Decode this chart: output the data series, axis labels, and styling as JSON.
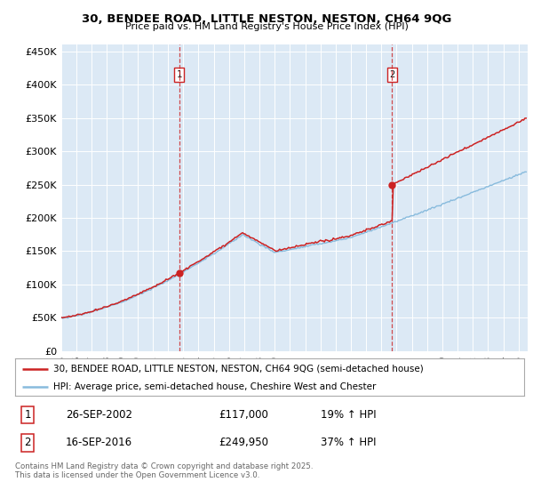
{
  "title": "30, BENDEE ROAD, LITTLE NESTON, NESTON, CH64 9QG",
  "subtitle": "Price paid vs. HM Land Registry's House Price Index (HPI)",
  "ylim": [
    0,
    460000
  ],
  "yticks": [
    0,
    50000,
    100000,
    150000,
    200000,
    250000,
    300000,
    350000,
    400000,
    450000
  ],
  "background_color": "#dce9f5",
  "sale1_price": 117000,
  "sale1_year": 2002.73,
  "sale2_price": 249950,
  "sale2_year": 2016.71,
  "legend_line1": "30, BENDEE ROAD, LITTLE NESTON, NESTON, CH64 9QG (semi-detached house)",
  "legend_line2": "HPI: Average price, semi-detached house, Cheshire West and Chester",
  "footer": "Contains HM Land Registry data © Crown copyright and database right 2025.\nThis data is licensed under the Open Government Licence v3.0.",
  "line_color_red": "#cc2222",
  "line_color_blue": "#88bbdd",
  "table_row1": [
    "1",
    "26-SEP-2002",
    "£117,000",
    "19% ↑ HPI"
  ],
  "table_row2": [
    "2",
    "16-SEP-2016",
    "£249,950",
    "37% ↑ HPI"
  ]
}
